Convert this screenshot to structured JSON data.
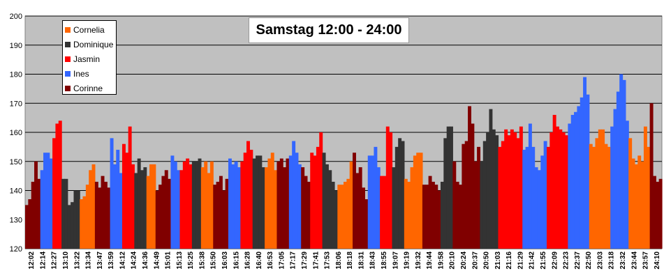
{
  "chart_data": {
    "type": "area",
    "title": "Samstag 12:00 - 24:00",
    "ylim": [
      120,
      200
    ],
    "yticks": [
      120,
      130,
      140,
      150,
      160,
      170,
      180,
      190,
      200
    ],
    "grid": true,
    "legend_position": "top-left",
    "xticks": [
      "12:02",
      "12:14",
      "12:27",
      "13:10",
      "13:22",
      "13:34",
      "13:47",
      "13:59",
      "14:12",
      "14:24",
      "14:36",
      "14:49",
      "15:01",
      "15:13",
      "15:25",
      "15:38",
      "15:50",
      "16:03",
      "16:15",
      "16:28",
      "16:40",
      "16:53",
      "17:05",
      "17:17",
      "17:29",
      "17:41",
      "17:53",
      "18:06",
      "18:18",
      "18:31",
      "18:43",
      "18:55",
      "19:07",
      "19:19",
      "19:32",
      "19:44",
      "19:58",
      "20:10",
      "20:24",
      "20:37",
      "20:50",
      "21:03",
      "21:16",
      "21:29",
      "21:42",
      "21:55",
      "22:09",
      "22:23",
      "22:37",
      "22:50",
      "23:03",
      "23:18",
      "23:32",
      "23:44",
      "23:57",
      "24:10"
    ],
    "series": [
      {
        "name": "Cornelia",
        "color": "#ff6600"
      },
      {
        "name": "Dominique",
        "color": "#333333"
      },
      {
        "name": "Jasmin",
        "color": "#ff0000"
      },
      {
        "name": "Ines",
        "color": "#3366ff"
      },
      {
        "name": "Corinne",
        "color": "#800000"
      }
    ],
    "segments": [
      {
        "series": "Corinne",
        "values": [
          135,
          137,
          143,
          150,
          144
        ]
      },
      {
        "series": "Ines",
        "values": [
          147,
          153,
          153,
          151
        ]
      },
      {
        "series": "Jasmin",
        "values": [
          158,
          163,
          164
        ]
      },
      {
        "series": "Dominique",
        "values": [
          144,
          144,
          135,
          136,
          140,
          140
        ]
      },
      {
        "series": "Cornelia",
        "values": [
          137,
          138,
          142,
          147,
          149
        ]
      },
      {
        "series": "Corinne",
        "values": [
          143,
          141,
          145,
          143,
          141
        ]
      },
      {
        "series": "Ines",
        "values": [
          158,
          149,
          154,
          146
        ]
      },
      {
        "series": "Jasmin",
        "values": [
          156,
          153,
          162,
          149
        ]
      },
      {
        "series": "Dominique",
        "values": [
          146,
          151,
          147,
          148
        ]
      },
      {
        "series": "Cornelia",
        "values": [
          145,
          149,
          149
        ]
      },
      {
        "series": "Corinne",
        "values": [
          140,
          142,
          145,
          147,
          144
        ]
      },
      {
        "series": "Ines",
        "values": [
          152,
          150,
          147
        ]
      },
      {
        "series": "Jasmin",
        "values": [
          147,
          150,
          151,
          149
        ]
      },
      {
        "series": "Dominique",
        "values": [
          150,
          150,
          151
        ]
      },
      {
        "series": "Cornelia",
        "values": [
          148,
          150,
          146,
          150
        ]
      },
      {
        "series": "Corinne",
        "values": [
          142,
          143,
          145,
          140,
          144
        ]
      },
      {
        "series": "Ines",
        "values": [
          151,
          149,
          150,
          148
        ]
      },
      {
        "series": "Jasmin",
        "values": [
          150,
          153,
          157,
          154
        ]
      },
      {
        "series": "Dominique",
        "values": [
          151,
          152,
          152,
          148
        ]
      },
      {
        "series": "Cornelia",
        "values": [
          148,
          151,
          153,
          147
        ]
      },
      {
        "series": "Corinne",
        "values": [
          150,
          151,
          148,
          151
        ]
      },
      {
        "series": "Ines",
        "values": [
          152,
          157,
          153,
          149
        ]
      },
      {
        "series": "Corinne",
        "values": [
          148,
          145,
          143
        ]
      },
      {
        "series": "Jasmin",
        "values": [
          153,
          152,
          155,
          160
        ]
      },
      {
        "series": "Dominique",
        "values": [
          153,
          149,
          147,
          143,
          140
        ]
      },
      {
        "series": "Cornelia",
        "values": [
          142,
          142,
          143,
          144,
          150
        ]
      },
      {
        "series": "Corinne",
        "values": [
          153,
          146,
          148,
          141,
          137
        ]
      },
      {
        "series": "Ines",
        "values": [
          152,
          152,
          155,
          148
        ]
      },
      {
        "series": "Jasmin",
        "values": [
          145,
          145,
          162,
          160
        ]
      },
      {
        "series": "Dominique",
        "values": [
          148,
          155,
          158,
          157
        ]
      },
      {
        "series": "Cornelia",
        "values": [
          144,
          143,
          148,
          152,
          153,
          153
        ]
      },
      {
        "series": "Corinne",
        "values": [
          142,
          142,
          145,
          143,
          142,
          140
        ]
      },
      {
        "series": "Dominique",
        "values": [
          143,
          158,
          162,
          162
        ]
      },
      {
        "series": "Corinne",
        "values": [
          150,
          143,
          142,
          156,
          157,
          169,
          163,
          150,
          155
        ]
      },
      {
        "series": "Dominique",
        "values": [
          150,
          157,
          160,
          168,
          161,
          159
        ]
      },
      {
        "series": "Jasmin",
        "values": [
          155,
          157,
          161,
          159,
          161,
          160,
          158,
          162
        ]
      },
      {
        "series": "Ines",
        "values": [
          154,
          155,
          163,
          155,
          148,
          147,
          152,
          157
        ]
      },
      {
        "series": "Jasmin",
        "values": [
          155,
          160,
          166,
          162,
          161,
          160,
          159
        ]
      },
      {
        "series": "Ines",
        "values": [
          163,
          166,
          167,
          169,
          172,
          179,
          173
        ]
      },
      {
        "series": "Cornelia",
        "values": [
          156,
          155,
          158,
          161,
          161,
          156,
          155
        ]
      },
      {
        "series": "Ines",
        "values": [
          162,
          168,
          174,
          180,
          178,
          164
        ]
      },
      {
        "series": "Cornelia",
        "values": [
          158,
          151,
          149,
          152,
          150,
          162,
          155
        ]
      },
      {
        "series": "Corinne",
        "values": [
          170,
          145,
          143,
          144
        ]
      }
    ]
  }
}
